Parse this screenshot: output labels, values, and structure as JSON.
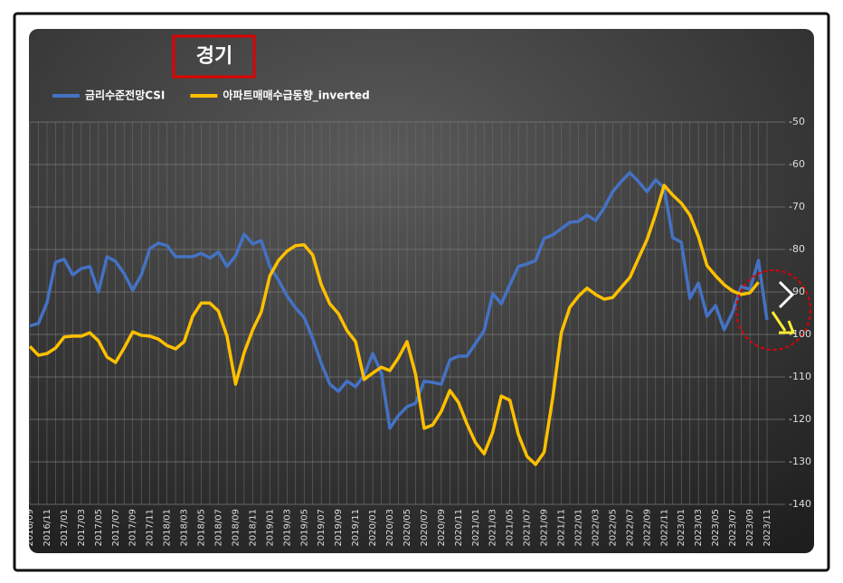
{
  "chart_data": {
    "type": "line",
    "title": "경기",
    "categories": [
      "2016/09",
      null,
      "2016/11",
      null,
      "2017/01",
      null,
      "2017/03",
      null,
      "2017/05",
      null,
      "2017/07",
      null,
      "2017/09",
      null,
      "2017/11",
      null,
      "2018/01",
      null,
      "2018/03",
      null,
      "2018/05",
      null,
      "2018/07",
      null,
      "2018/09",
      null,
      "2018/11",
      null,
      "2019/01",
      null,
      "2019/03",
      null,
      "2019/05",
      null,
      "2019/07",
      null,
      "2019/09",
      null,
      "2019/11",
      null,
      "2020/01",
      null,
      "2020/03",
      null,
      "2020/05",
      null,
      "2020/07",
      null,
      "2020/09",
      null,
      "2020/11",
      null,
      "2021/01",
      null,
      "2021/03",
      null,
      "2021/05",
      null,
      "2021/07",
      null,
      "2021/09",
      null,
      "2021/11",
      null,
      "2022/01",
      null,
      "2022/03",
      null,
      "2022/05",
      null,
      "2022/07",
      null,
      "2022/09",
      null,
      "2022/11",
      null,
      "2023/01",
      null,
      "2023/03",
      null,
      "2023/05",
      null,
      "2023/07",
      null,
      "2023/09",
      null,
      "2023/11"
    ],
    "series": [
      {
        "name": "금리수준전망CSI",
        "color": "#4472c4",
        "values": [
          -98,
          -97.4,
          -92.5,
          -83,
          -82.3,
          -86,
          -84.5,
          -84,
          -90,
          -81.7,
          -82.8,
          -85.7,
          -89.6,
          -86,
          -79.8,
          -78.5,
          -79.1,
          -81.7,
          -81.7,
          -81.7,
          -80.9,
          -82,
          -80.6,
          -84,
          -81.5,
          -76.4,
          -78.7,
          -77.9,
          -84,
          -87.2,
          -90.9,
          -93.8,
          -96,
          -101,
          -106.8,
          -111.7,
          -113.4,
          -111,
          -112.3,
          -109.6,
          -104.5,
          -109,
          -122.1,
          -119.1,
          -117,
          -116.2,
          -111,
          -111.3,
          -111.7,
          -106,
          -105.1,
          -105.1,
          -102.1,
          -99.1,
          -90.4,
          -92.8,
          -88.3,
          -84,
          -83.4,
          -82.6,
          -77.4,
          -76.6,
          -75.1,
          -73.6,
          -73.4,
          -71.9,
          -73.2,
          -70.2,
          -66.4,
          -64,
          -61.9,
          -64,
          -66.4,
          -63.6,
          -65.5,
          -77.2,
          -78.3,
          -91.5,
          -87.9,
          -95.7,
          -93.2,
          -98.9,
          -94.7,
          -88.7,
          -89.4,
          -82.6,
          -96.6
        ]
      },
      {
        "name": "아파트매매수급동향_inverted",
        "color": "#ffc000",
        "values": [
          -102.8,
          -104.9,
          -104.5,
          -103.2,
          -100.6,
          -100.4,
          -100.4,
          -99.6,
          -101.5,
          -105.3,
          -106.6,
          -103.2,
          -99.4,
          -100.2,
          -100.4,
          -101.1,
          -102.6,
          -103.4,
          -101.7,
          -95.7,
          -92.6,
          -92.6,
          -94.5,
          -100.4,
          -111.7,
          -104.3,
          -98.9,
          -94.7,
          -86.2,
          -82.6,
          -80.4,
          -79.1,
          -78.9,
          -81.3,
          -88.3,
          -92.8,
          -95.1,
          -99.1,
          -101.7,
          -110.6,
          -109.1,
          -107.7,
          -108.5,
          -105.5,
          -101.7,
          -109.4,
          -122.1,
          -121.3,
          -118.1,
          -113.2,
          -116,
          -121.1,
          -125.5,
          -128.1,
          -123,
          -114.5,
          -115.5,
          -123.6,
          -128.7,
          -130.6,
          -127.7,
          -114.9,
          -99.6,
          -93.6,
          -91,
          -89.1,
          -90.6,
          -91.7,
          -91.3,
          -88.9,
          -86.6,
          -82.1,
          -77.7,
          -71.7,
          -64.9,
          -67.2,
          -69.1,
          -71.9,
          -77,
          -83.8,
          -86.2,
          -88.3,
          -89.8,
          -90.6,
          -90.2,
          -87.7,
          null
        ]
      }
    ],
    "ylim": [
      -140,
      -50
    ],
    "yticks": [
      -50,
      -60,
      -70,
      -80,
      -90,
      -100,
      -110,
      -120,
      -130,
      -140
    ],
    "grid": true
  }
}
